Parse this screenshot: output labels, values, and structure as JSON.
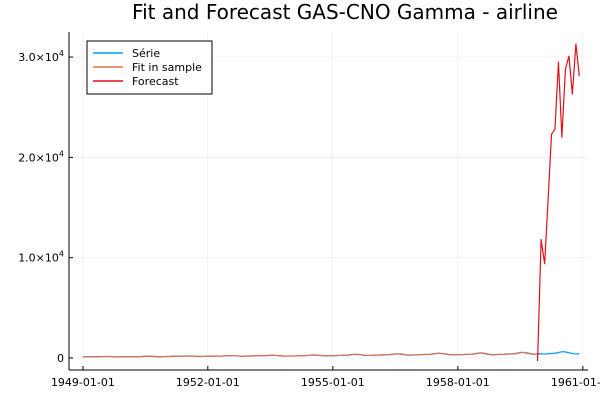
{
  "chart_data": {
    "type": "line",
    "title": "Fit and Forecast GAS-CNO Gamma - airline",
    "xlabel": "",
    "ylabel": "",
    "x_axis": {
      "type": "date",
      "range": [
        "1948-09-01",
        "1961-02-15"
      ],
      "ticks": [
        {
          "value": "1949-01-01",
          "label": "1949-01-01"
        },
        {
          "value": "1952-01-01",
          "label": "1952-01-01"
        },
        {
          "value": "1955-01-01",
          "label": "1955-01-01"
        },
        {
          "value": "1958-01-01",
          "label": "1958-01-01"
        },
        {
          "value": "1961-01-01",
          "label": "1961-01-01"
        }
      ]
    },
    "y_axis": {
      "range": [
        -1200,
        32500
      ],
      "ticks": [
        {
          "value": 0,
          "mantissa": "0",
          "exp": ""
        },
        {
          "value": 10000,
          "mantissa": "1.0×10",
          "exp": "4"
        },
        {
          "value": 20000,
          "mantissa": "2.0×10",
          "exp": "4"
        },
        {
          "value": 30000,
          "mantissa": "3.0×10",
          "exp": "4"
        }
      ]
    },
    "grid": true,
    "legend_position": "top-left",
    "series": [
      {
        "name": "Série",
        "color": "#009AFA",
        "x": [
          "1949-01-01",
          "1949-02-01",
          "1949-03-01",
          "1949-04-01",
          "1949-05-01",
          "1949-06-01",
          "1949-07-01",
          "1949-08-01",
          "1949-09-01",
          "1949-10-01",
          "1949-11-01",
          "1949-12-01",
          "1950-01-01",
          "1950-02-01",
          "1950-03-01",
          "1950-04-01",
          "1950-05-01",
          "1950-06-01",
          "1950-07-01",
          "1950-08-01",
          "1950-09-01",
          "1950-10-01",
          "1950-11-01",
          "1950-12-01",
          "1951-01-01",
          "1951-02-01",
          "1951-03-01",
          "1951-04-01",
          "1951-05-01",
          "1951-06-01",
          "1951-07-01",
          "1951-08-01",
          "1951-09-01",
          "1951-10-01",
          "1951-11-01",
          "1951-12-01",
          "1952-01-01",
          "1952-02-01",
          "1952-03-01",
          "1952-04-01",
          "1952-05-01",
          "1952-06-01",
          "1952-07-01",
          "1952-08-01",
          "1952-09-01",
          "1952-10-01",
          "1952-11-01",
          "1952-12-01",
          "1953-01-01",
          "1953-02-01",
          "1953-03-01",
          "1953-04-01",
          "1953-05-01",
          "1953-06-01",
          "1953-07-01",
          "1953-08-01",
          "1953-09-01",
          "1953-10-01",
          "1953-11-01",
          "1953-12-01",
          "1954-01-01",
          "1954-02-01",
          "1954-03-01",
          "1954-04-01",
          "1954-05-01",
          "1954-06-01",
          "1954-07-01",
          "1954-08-01",
          "1954-09-01",
          "1954-10-01",
          "1954-11-01",
          "1954-12-01",
          "1955-01-01",
          "1955-02-01",
          "1955-03-01",
          "1955-04-01",
          "1955-05-01",
          "1955-06-01",
          "1955-07-01",
          "1955-08-01",
          "1955-09-01",
          "1955-10-01",
          "1955-11-01",
          "1955-12-01",
          "1956-01-01",
          "1956-02-01",
          "1956-03-01",
          "1956-04-01",
          "1956-05-01",
          "1956-06-01",
          "1956-07-01",
          "1956-08-01",
          "1956-09-01",
          "1956-10-01",
          "1956-11-01",
          "1956-12-01",
          "1957-01-01",
          "1957-02-01",
          "1957-03-01",
          "1957-04-01",
          "1957-05-01",
          "1957-06-01",
          "1957-07-01",
          "1957-08-01",
          "1957-09-01",
          "1957-10-01",
          "1957-11-01",
          "1957-12-01",
          "1958-01-01",
          "1958-02-01",
          "1958-03-01",
          "1958-04-01",
          "1958-05-01",
          "1958-06-01",
          "1958-07-01",
          "1958-08-01",
          "1958-09-01",
          "1958-10-01",
          "1958-11-01",
          "1958-12-01",
          "1959-01-01",
          "1959-02-01",
          "1959-03-01",
          "1959-04-01",
          "1959-05-01",
          "1959-06-01",
          "1959-07-01",
          "1959-08-01",
          "1959-09-01",
          "1959-10-01",
          "1959-11-01",
          "1959-12-01",
          "1960-01-01",
          "1960-02-01",
          "1960-03-01",
          "1960-04-01",
          "1960-05-01",
          "1960-06-01",
          "1960-07-01",
          "1960-08-01",
          "1960-09-01",
          "1960-10-01",
          "1960-11-01",
          "1960-12-01"
        ],
        "values": [
          112,
          118,
          132,
          129,
          121,
          135,
          148,
          148,
          136,
          119,
          104,
          118,
          115,
          126,
          141,
          135,
          125,
          149,
          170,
          170,
          158,
          133,
          114,
          140,
          145,
          150,
          178,
          163,
          172,
          178,
          199,
          199,
          184,
          162,
          146,
          166,
          171,
          180,
          193,
          181,
          183,
          218,
          230,
          242,
          209,
          191,
          172,
          194,
          196,
          196,
          236,
          235,
          229,
          243,
          264,
          272,
          237,
          211,
          180,
          201,
          204,
          188,
          235,
          227,
          234,
          264,
          302,
          293,
          259,
          229,
          203,
          229,
          242,
          233,
          267,
          269,
          270,
          315,
          364,
          347,
          312,
          274,
          237,
          278,
          284,
          277,
          317,
          313,
          318,
          374,
          413,
          405,
          355,
          306,
          271,
          306,
          315,
          301,
          356,
          348,
          355,
          422,
          465,
          467,
          404,
          347,
          305,
          336,
          340,
          318,
          362,
          348,
          363,
          435,
          491,
          505,
          404,
          359,
          310,
          337,
          360,
          342,
          406,
          396,
          420,
          472,
          548,
          559,
          463,
          407,
          362,
          405,
          417,
          391,
          419,
          461,
          472,
          535,
          622,
          606,
          508,
          461,
          390,
          432
        ]
      },
      {
        "name": "Fit in sample",
        "color": "#E26F46",
        "x": [
          "1949-01-01",
          "1949-02-01",
          "1949-03-01",
          "1949-04-01",
          "1949-05-01",
          "1949-06-01",
          "1949-07-01",
          "1949-08-01",
          "1949-09-01",
          "1949-10-01",
          "1949-11-01",
          "1949-12-01",
          "1950-01-01",
          "1950-02-01",
          "1950-03-01",
          "1950-04-01",
          "1950-05-01",
          "1950-06-01",
          "1950-07-01",
          "1950-08-01",
          "1950-09-01",
          "1950-10-01",
          "1950-11-01",
          "1950-12-01",
          "1951-01-01",
          "1951-02-01",
          "1951-03-01",
          "1951-04-01",
          "1951-05-01",
          "1951-06-01",
          "1951-07-01",
          "1951-08-01",
          "1951-09-01",
          "1951-10-01",
          "1951-11-01",
          "1951-12-01",
          "1952-01-01",
          "1952-02-01",
          "1952-03-01",
          "1952-04-01",
          "1952-05-01",
          "1952-06-01",
          "1952-07-01",
          "1952-08-01",
          "1952-09-01",
          "1952-10-01",
          "1952-11-01",
          "1952-12-01",
          "1953-01-01",
          "1953-02-01",
          "1953-03-01",
          "1953-04-01",
          "1953-05-01",
          "1953-06-01",
          "1953-07-01",
          "1953-08-01",
          "1953-09-01",
          "1953-10-01",
          "1953-11-01",
          "1953-12-01",
          "1954-01-01",
          "1954-02-01",
          "1954-03-01",
          "1954-04-01",
          "1954-05-01",
          "1954-06-01",
          "1954-07-01",
          "1954-08-01",
          "1954-09-01",
          "1954-10-01",
          "1954-11-01",
          "1954-12-01",
          "1955-01-01",
          "1955-02-01",
          "1955-03-01",
          "1955-04-01",
          "1955-05-01",
          "1955-06-01",
          "1955-07-01",
          "1955-08-01",
          "1955-09-01",
          "1955-10-01",
          "1955-11-01",
          "1955-12-01",
          "1956-01-01",
          "1956-02-01",
          "1956-03-01",
          "1956-04-01",
          "1956-05-01",
          "1956-06-01",
          "1956-07-01",
          "1956-08-01",
          "1956-09-01",
          "1956-10-01",
          "1956-11-01",
          "1956-12-01",
          "1957-01-01",
          "1957-02-01",
          "1957-03-01",
          "1957-04-01",
          "1957-05-01",
          "1957-06-01",
          "1957-07-01",
          "1957-08-01",
          "1957-09-01",
          "1957-10-01",
          "1957-11-01",
          "1957-12-01",
          "1958-01-01",
          "1958-02-01",
          "1958-03-01",
          "1958-04-01",
          "1958-05-01",
          "1958-06-01",
          "1958-07-01",
          "1958-08-01",
          "1958-09-01",
          "1958-10-01",
          "1958-11-01",
          "1958-12-01",
          "1959-01-01",
          "1959-02-01",
          "1959-03-01",
          "1959-04-01",
          "1959-05-01",
          "1959-06-01",
          "1959-07-01",
          "1959-08-01",
          "1959-09-01",
          "1959-10-01",
          "1959-11-01",
          "1959-12-01"
        ],
        "values": [
          115,
          116,
          126,
          135,
          127,
          125,
          141,
          152,
          147,
          128,
          111,
          109,
          119,
          122,
          135,
          142,
          133,
          135,
          159,
          173,
          165,
          144,
          123,
          127,
          142,
          148,
          165,
          172,
          166,
          173,
          190,
          200,
          192,
          171,
          152,
          155,
          168,
          177,
          188,
          189,
          183,
          201,
          225,
          238,
          225,
          199,
          181,
          183,
          194,
          197,
          217,
          234,
          233,
          237,
          255,
          269,
          253,
          222,
          193,
          191,
          202,
          196,
          214,
          230,
          232,
          250,
          283,
          297,
          276,
          243,
          215,
          216,
          235,
          238,
          253,
          268,
          269,
          293,
          339,
          356,
          329,
          289,
          254,
          258,
          280,
          281,
          298,
          314,
          316,
          346,
          394,
          409,
          380,
          327,
          287,
          290,
          310,
          309,
          330,
          351,
          352,
          389,
          443,
          463,
          434,
          374,
          325,
          322,
          338,
          330,
          345,
          358,
          356,
          399,
          463,
          497,
          455,
          378,
          334,
          324,
          349,
          353,
          379,
          403,
          408,
          447,
          516,
          552,
          511,
          432,
          381,
          382
        ]
      },
      {
        "name": "Forecast",
        "color": "#E0101A",
        "x": [
          "1959-12-01",
          "1960-01-01",
          "1960-02-01",
          "1960-03-01",
          "1960-04-01",
          "1960-05-01",
          "1960-06-01",
          "1960-07-01",
          "1960-08-01",
          "1960-09-01",
          "1960-10-01",
          "1960-11-01",
          "1960-12-01"
        ],
        "values": [
          -300,
          11800,
          9400,
          15500,
          22300,
          22800,
          29500,
          22000,
          28800,
          30100,
          26300,
          31300,
          28100
        ]
      }
    ]
  }
}
